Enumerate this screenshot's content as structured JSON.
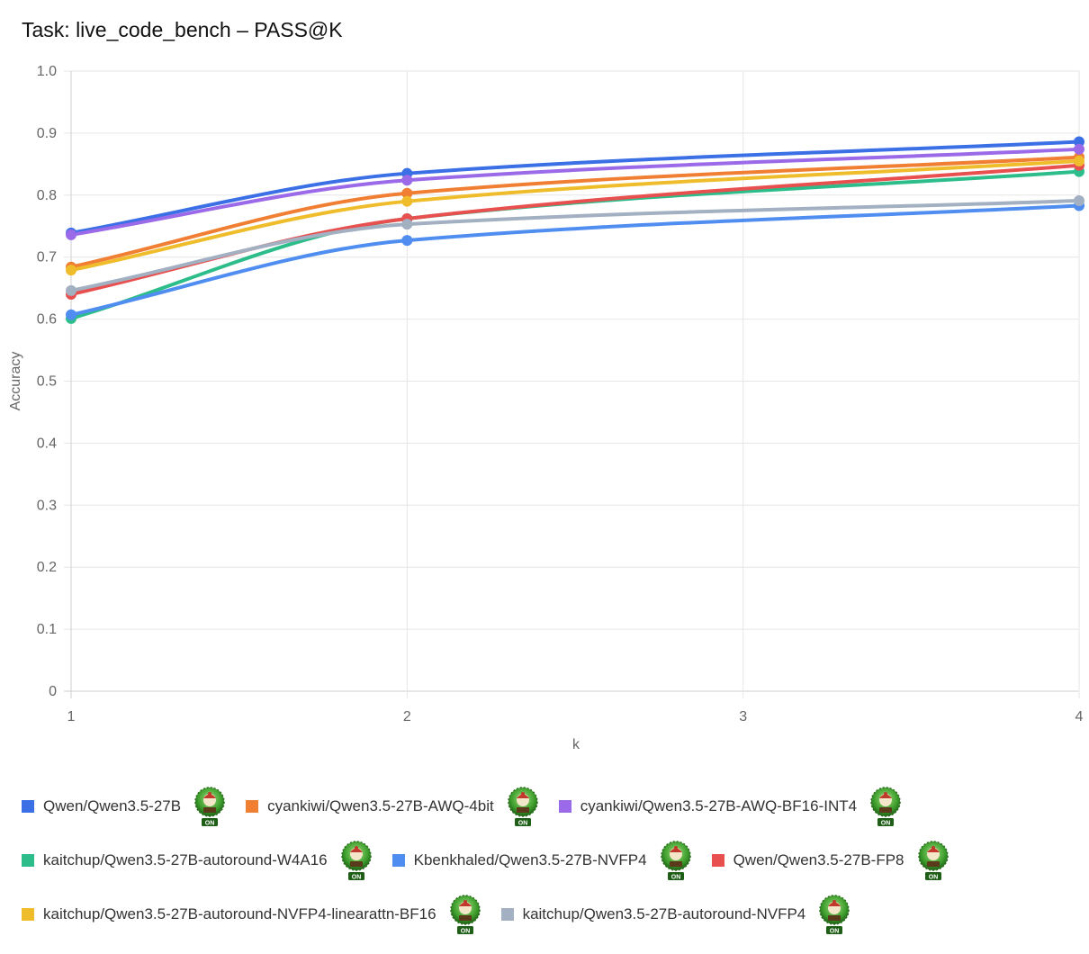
{
  "title": "Task: live_code_bench – PASS@K",
  "colors": {
    "grid": "#e6e6e6",
    "axis": "#cfcfcf",
    "badge_green": "#3a9a2a",
    "badge_dark": "#1e5e16"
  },
  "legend_badge": {
    "icon": "on-badge-icon",
    "text": "ON"
  },
  "chart_data": {
    "type": "line",
    "title": "Task: live_code_bench – PASS@K",
    "xlabel": "k",
    "ylabel": "Accuracy",
    "x": [
      1,
      2,
      3,
      4
    ],
    "xlim": [
      1,
      4
    ],
    "ylim": [
      0,
      1
    ],
    "yticks": [
      "0",
      "0.1",
      "0.2",
      "0.3",
      "0.4",
      "0.5",
      "0.6",
      "0.7",
      "0.8",
      "0.9",
      "1.0"
    ],
    "xticks": [
      "1",
      "2",
      "3",
      "4"
    ],
    "grid": true,
    "legend_position": "bottom",
    "series": [
      {
        "name": "Qwen/Qwen3.5-27B",
        "color": "#3b6fe6",
        "values": [
          0.739,
          0.835,
          null,
          0.886
        ]
      },
      {
        "name": "cyankiwi/Qwen3.5-27B-AWQ-4bit",
        "color": "#f07f33",
        "values": [
          0.684,
          0.803,
          null,
          0.861
        ]
      },
      {
        "name": "cyankiwi/Qwen3.5-27B-AWQ-BF16-INT4",
        "color": "#9a6ae8",
        "values": [
          0.736,
          0.824,
          null,
          0.874
        ]
      },
      {
        "name": "kaitchup/Qwen3.5-27B-autoround-W4A16",
        "color": "#2dbd8a",
        "values": [
          0.601,
          0.762,
          null,
          0.838
        ]
      },
      {
        "name": "Kbenkhaled/Qwen3.5-27B-NVFP4",
        "color": "#4f8ef0",
        "values": [
          0.607,
          0.727,
          null,
          0.783
        ]
      },
      {
        "name": "Qwen/Qwen3.5-27B-FP8",
        "color": "#e8504f",
        "values": [
          0.64,
          0.762,
          null,
          0.848
        ]
      },
      {
        "name": "kaitchup/Qwen3.5-27B-autoround-NVFP4-linearattn-BF16",
        "color": "#efbd2c",
        "values": [
          0.679,
          0.79,
          null,
          0.855
        ]
      },
      {
        "name": "kaitchup/Qwen3.5-27B-autoround-NVFP4",
        "color": "#a2b0c2",
        "values": [
          0.646,
          0.753,
          null,
          0.791
        ]
      }
    ]
  }
}
